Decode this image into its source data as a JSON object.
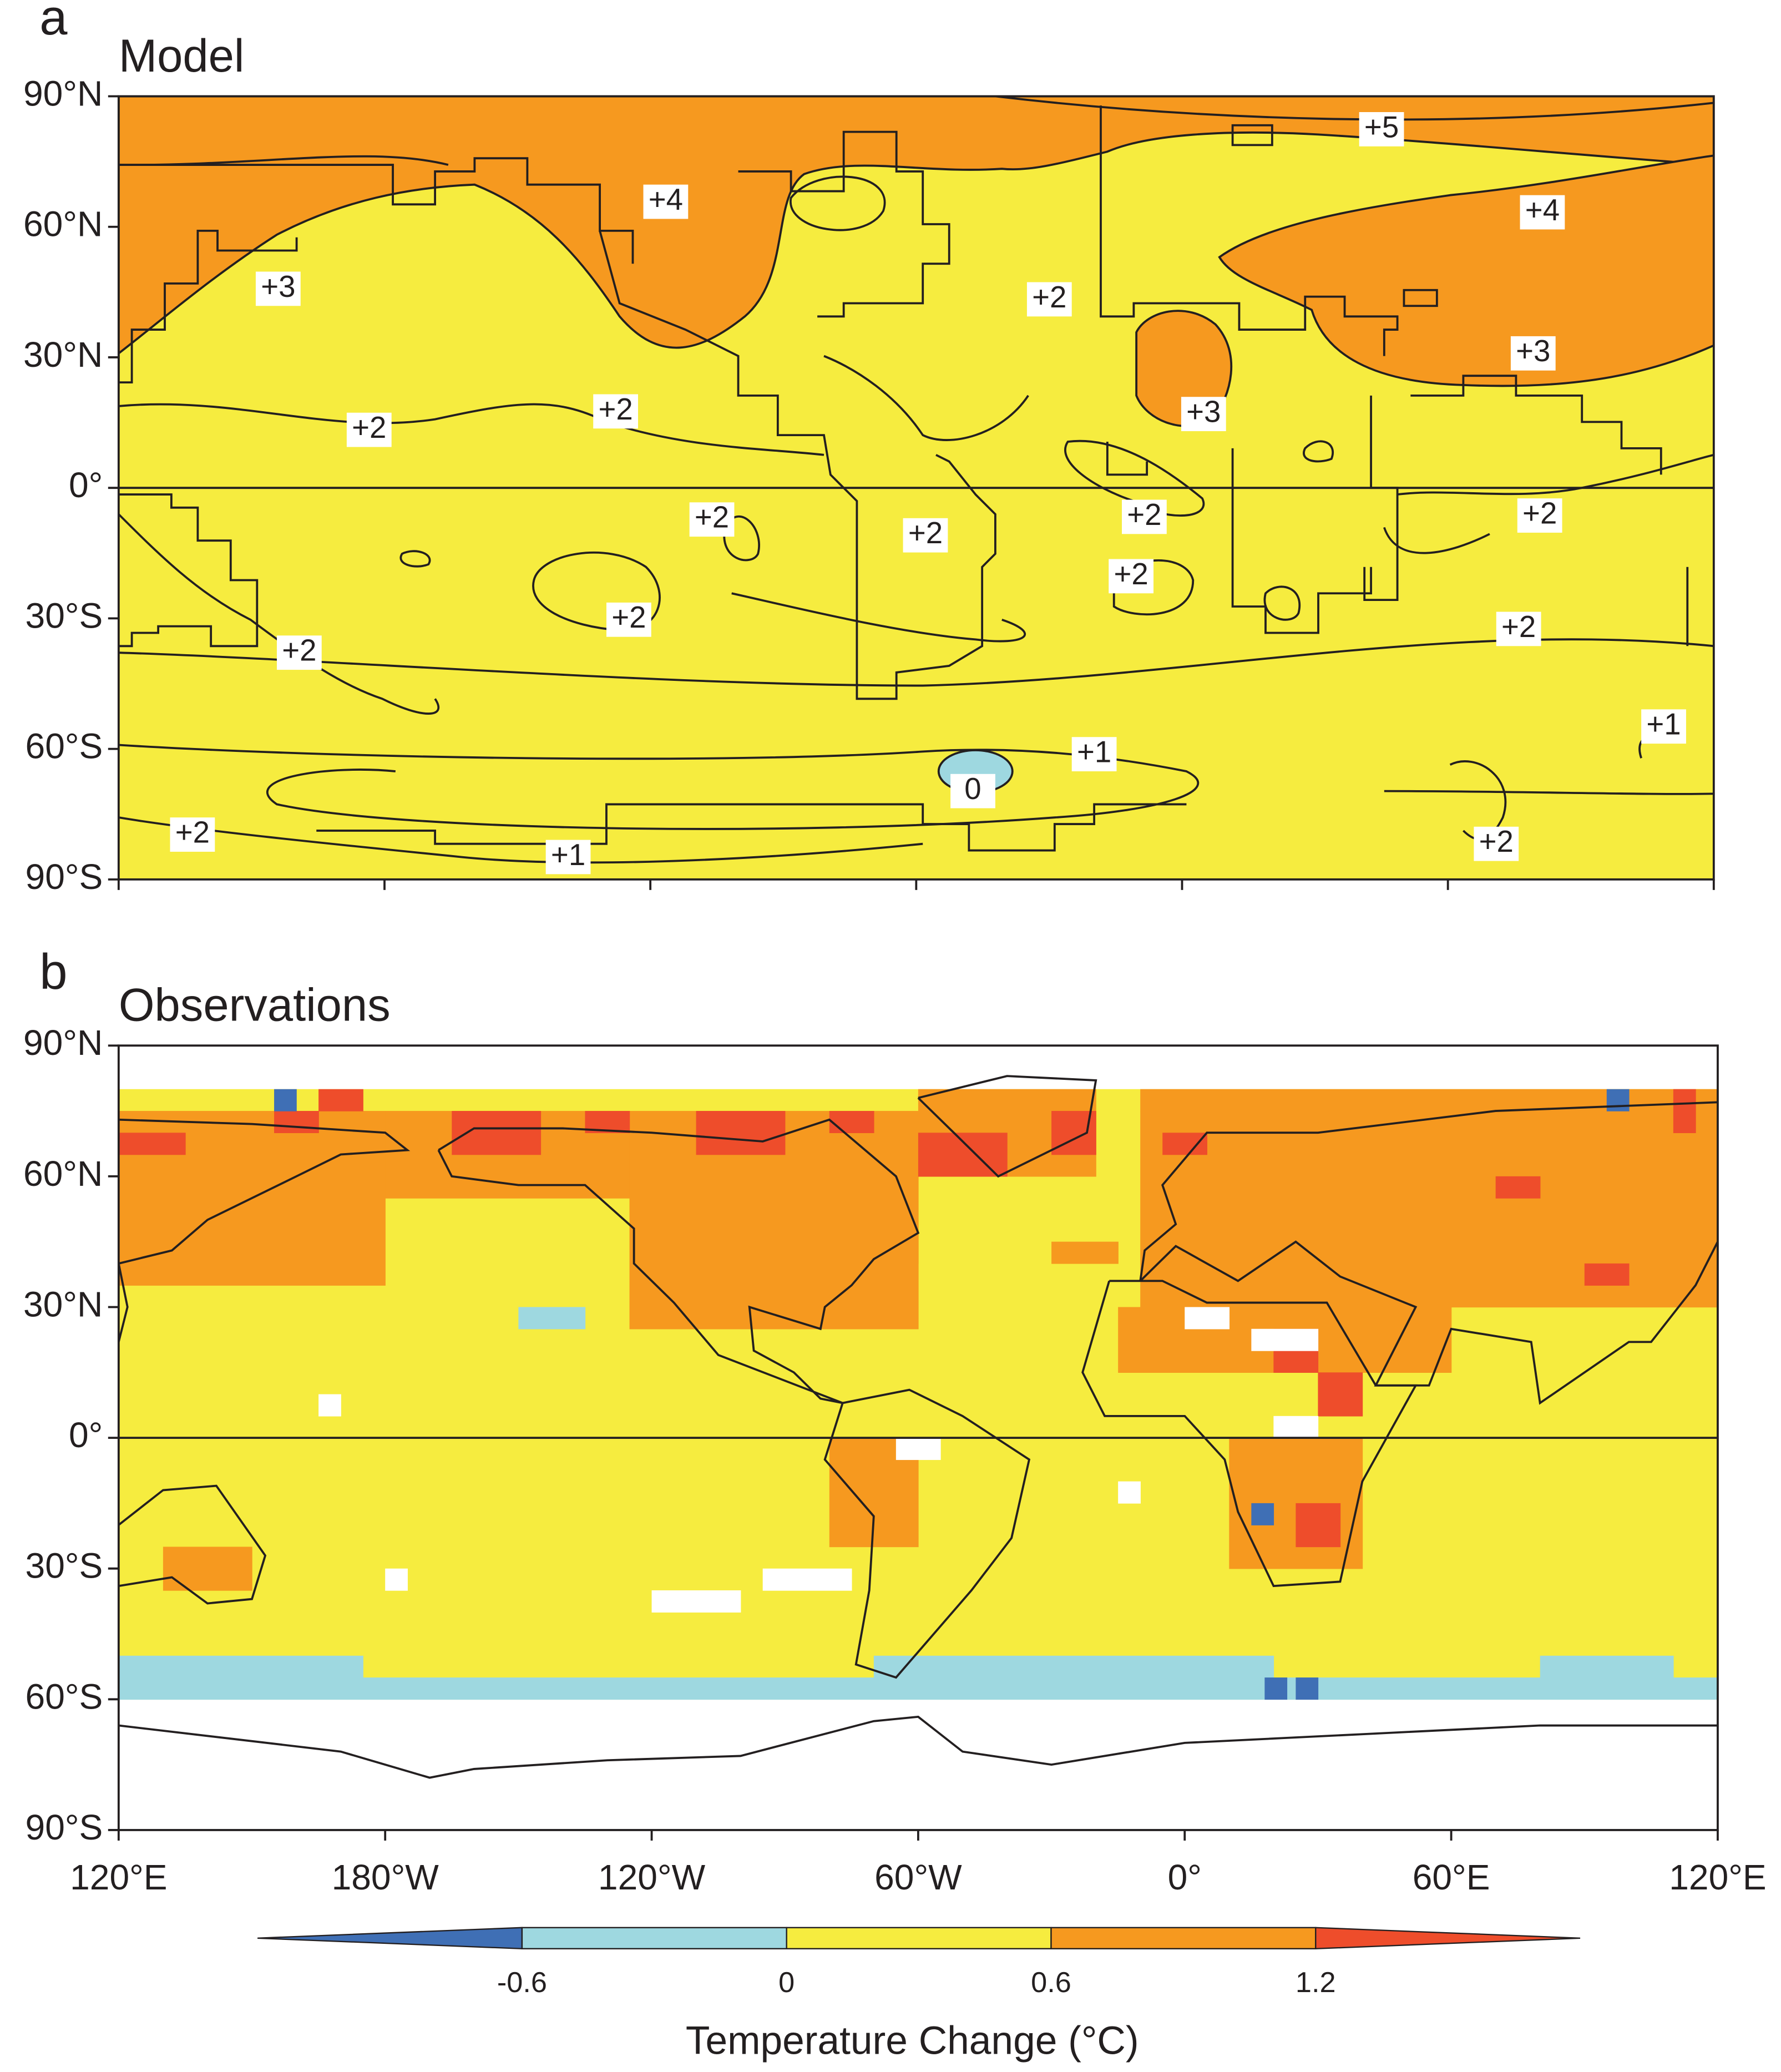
{
  "chart_data": [
    {
      "type": "contour-map",
      "panel_label": "a",
      "title": "Model",
      "xlim": [
        120,
        480
      ],
      "ylim": [
        -90,
        90
      ],
      "yticks": [
        {
          "value": 90,
          "label": "90°N"
        },
        {
          "value": 60,
          "label": "60°N"
        },
        {
          "value": 30,
          "label": "30°N"
        },
        {
          "value": 0,
          "label": "0°"
        },
        {
          "value": -30,
          "label": "30°S"
        },
        {
          "value": -60,
          "label": "60°S"
        },
        {
          "value": -90,
          "label": "90°S"
        }
      ],
      "contour_labels": [
        "+5",
        "+4",
        "+4",
        "+3",
        "+2",
        "+3",
        "+2",
        "+3",
        "+2",
        "+2",
        "+2",
        "+2",
        "+2",
        "+2",
        "+2",
        "+2",
        "+2",
        "+1",
        "+1",
        "0",
        "+2",
        "+1",
        "+2"
      ]
    },
    {
      "type": "grid-map",
      "panel_label": "b",
      "title": "Observations",
      "xlim": [
        120,
        480
      ],
      "ylim": [
        -90,
        90
      ],
      "yticks": [
        {
          "value": 90,
          "label": "90°N"
        },
        {
          "value": 60,
          "label": "60°N"
        },
        {
          "value": 30,
          "label": "30°N"
        },
        {
          "value": 0,
          "label": "0°"
        },
        {
          "value": -30,
          "label": "30°S"
        },
        {
          "value": -60,
          "label": "60°S"
        },
        {
          "value": -90,
          "label": "90°S"
        }
      ],
      "xticks": [
        {
          "value": 120,
          "label": "120°E"
        },
        {
          "value": 180,
          "label": "180°W"
        },
        {
          "value": 240,
          "label": "120°W"
        },
        {
          "value": 300,
          "label": "60°W"
        },
        {
          "value": 360,
          "label": "0°"
        },
        {
          "value": 420,
          "label": "60°E"
        },
        {
          "value": 480,
          "label": "120°E"
        }
      ],
      "colorbar": {
        "ticks": [
          -0.6,
          0,
          0.6,
          1.2
        ],
        "colors": [
          "#3f6fb5",
          "#9ed8e0",
          "#f6ec3f",
          "#f6991f",
          "#ee4d2b"
        ],
        "label": "Temperature Change (°C)"
      }
    }
  ]
}
